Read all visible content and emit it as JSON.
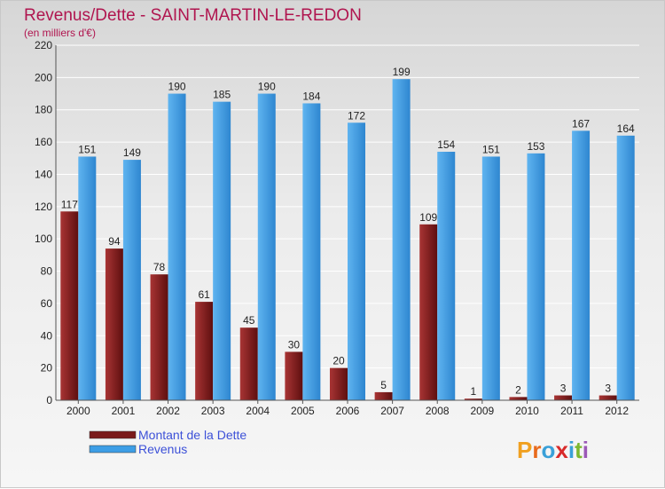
{
  "chart_data": {
    "type": "bar",
    "title": "Revenus/Dette - SAINT-MARTIN-LE-REDON",
    "subtitle": "(en milliers d'€)",
    "categories": [
      "2000",
      "2001",
      "2002",
      "2003",
      "2004",
      "2005",
      "2006",
      "2007",
      "2008",
      "2009",
      "2010",
      "2011",
      "2012"
    ],
    "series": [
      {
        "name": "Montant de la Dette",
        "values": [
          117,
          94,
          78,
          61,
          45,
          30,
          20,
          5,
          109,
          1,
          2,
          3,
          3
        ],
        "color": "#7a1a1a"
      },
      {
        "name": "Revenus",
        "values": [
          151,
          149,
          190,
          185,
          190,
          184,
          172,
          199,
          154,
          151,
          153,
          167,
          164
        ],
        "color": "#3d9ee6"
      }
    ],
    "ylim": [
      0,
      220
    ],
    "yticks": [
      0,
      20,
      40,
      60,
      80,
      100,
      120,
      140,
      160,
      180,
      200,
      220
    ],
    "grid": true,
    "legend": "bottom-left"
  },
  "logo": {
    "letters": [
      "P",
      "r",
      "o",
      "x",
      "i",
      "t",
      "i"
    ],
    "colors": [
      "#f0a020",
      "#e86a1c",
      "#3aa0d8",
      "#d82a2a",
      "#3aa0d8",
      "#7cb82f",
      "#9b59b6"
    ]
  }
}
